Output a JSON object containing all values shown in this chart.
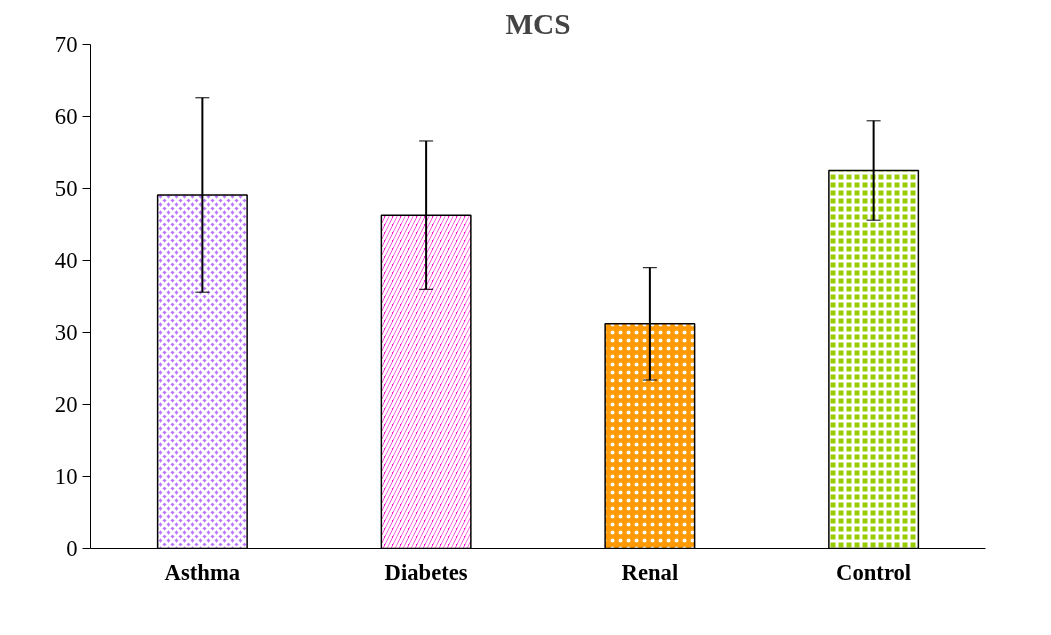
{
  "chart_data": {
    "type": "bar",
    "title": "MCS",
    "categories": [
      "Asthma",
      "Diabetes",
      "Renal",
      "Control"
    ],
    "values": [
      49.1,
      46.3,
      31.2,
      52.5
    ],
    "errors": [
      13.5,
      10.3,
      7.8,
      6.9
    ],
    "colors": [
      "#bb77ff",
      "#ff00cc",
      "#ff9900",
      "#99cc00"
    ],
    "ylim": [
      0,
      70
    ],
    "yticks": [
      0,
      10,
      20,
      30,
      40,
      50,
      60,
      70
    ],
    "grid": false
  }
}
